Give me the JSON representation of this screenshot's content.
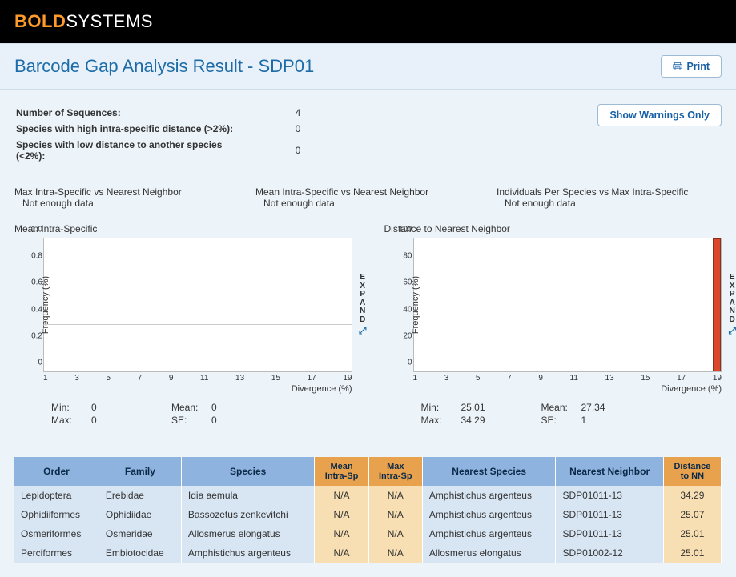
{
  "brand": {
    "bold": "BOLD",
    "rest": "SYSTEMS"
  },
  "page_title": "Barcode Gap Analysis Result - SDP01",
  "buttons": {
    "print": "Print",
    "show_warnings": "Show Warnings Only",
    "expand": "EXPAND"
  },
  "icons": {
    "print": "print-icon",
    "expand": "expand-icon"
  },
  "summary": [
    {
      "label": "Number of Sequences:",
      "value": "4"
    },
    {
      "label": "Species with high intra-specific distance (>2%):",
      "value": "0"
    },
    {
      "label": "Species with low distance to another species (<2%):",
      "value": "0"
    }
  ],
  "placeholders": [
    {
      "title": "Max Intra-Specific vs Nearest Neighbor",
      "msg": "Not enough data"
    },
    {
      "title": "Mean Intra-Specific vs Nearest Neighbor",
      "msg": "Not enough data"
    },
    {
      "title": "Individuals Per Species vs Max Intra-Specific",
      "msg": "Not enough data"
    }
  ],
  "chart_left": {
    "title": "Mean Intra-Specific",
    "type": "histogram",
    "ylabel": "Frequency (%)",
    "xlabel": "Divergence (%)",
    "ylim": [
      0,
      1.0
    ],
    "yticks": [
      "0",
      "0.2",
      "0.4",
      "0.6",
      "0.8",
      "1.0"
    ],
    "xticks": [
      "1",
      "3",
      "5",
      "7",
      "9",
      "11",
      "13",
      "15",
      "17",
      "19"
    ],
    "gridlines_at": [
      0.35,
      0.7
    ],
    "background": "#ffffff",
    "grid_color": "#cccccc",
    "stats": {
      "Min": "0",
      "Max": "0",
      "Mean": "0",
      "SE": "0"
    }
  },
  "chart_right": {
    "title": "Distance to Nearest Neighbor",
    "type": "histogram",
    "ylabel": "Frequency (%)",
    "xlabel": "Divergence (%)",
    "ylim": [
      0,
      100
    ],
    "yticks": [
      "0",
      "20",
      "40",
      "60",
      "80",
      "100"
    ],
    "xticks": [
      "1",
      "3",
      "5",
      "7",
      "9",
      "11",
      "13",
      "15",
      "17",
      "19"
    ],
    "bars": [
      {
        "x_frac": 0.975,
        "width_frac": 0.025,
        "height_frac": 1.0,
        "color": "#d9482b",
        "border": "#8a2f1b"
      }
    ],
    "background": "#ffffff",
    "stats": {
      "Min": "25.01",
      "Max": "34.29",
      "Mean": "27.34",
      "SE": "1"
    }
  },
  "table": {
    "head_blue": [
      "Order",
      "Family",
      "Species"
    ],
    "head_orange_intra": {
      "mean": "Mean\nIntra-Sp",
      "max": "Max\nIntra-Sp"
    },
    "head_blue2": [
      "Nearest Species",
      "Nearest Neighbor"
    ],
    "head_orange_nn": "Distance\nto NN",
    "rows": [
      {
        "order": "Lepidoptera",
        "family": "Erebidae",
        "species": "Idia aemula",
        "mean": "N/A",
        "max": "N/A",
        "ns": "Amphistichus argenteus",
        "nn": "SDP01011-13",
        "dist": "34.29"
      },
      {
        "order": "Ophidiiformes",
        "family": "Ophidiidae",
        "species": "Bassozetus zenkevitchi",
        "mean": "N/A",
        "max": "N/A",
        "ns": "Amphistichus argenteus",
        "nn": "SDP01011-13",
        "dist": "25.07"
      },
      {
        "order": "Osmeriformes",
        "family": "Osmeridae",
        "species": "Allosmerus elongatus",
        "mean": "N/A",
        "max": "N/A",
        "ns": "Amphistichus argenteus",
        "nn": "SDP01011-13",
        "dist": "25.01"
      },
      {
        "order": "Perciformes",
        "family": "Embiotocidae",
        "species": "Amphistichus argenteus",
        "mean": "N/A",
        "max": "N/A",
        "ns": "Allosmerus elongatus",
        "nn": "SDP01002-12",
        "dist": "25.01"
      }
    ]
  },
  "colors": {
    "accent_orange": "#ff9b2b",
    "header_blue": "#8fb3df",
    "header_orange": "#e8a24d",
    "row_blue": "#d8e6f4",
    "row_orange": "#f7dfb3",
    "link": "#1d6ca8"
  }
}
